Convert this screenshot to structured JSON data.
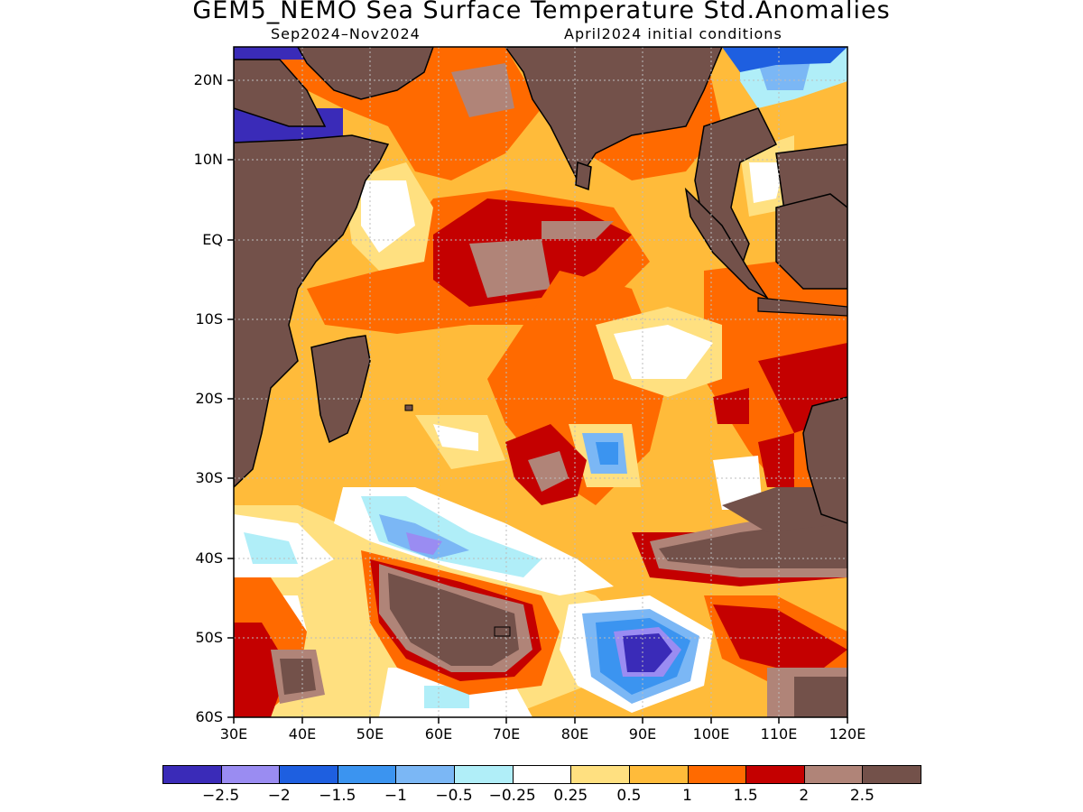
{
  "title": "GEM5_NEMO Sea Surface Temperature Std.Anomalies",
  "subtitle_left": "Sep2024–Nov2024",
  "subtitle_right": "April2024 initial conditions",
  "lat_labels": [
    "20N",
    "10N",
    "EQ",
    "10S",
    "20S",
    "30S",
    "40S",
    "50S",
    "60S"
  ],
  "lon_labels": [
    "30E",
    "40E",
    "50E",
    "60E",
    "70E",
    "80E",
    "90E",
    "100E",
    "110E",
    "120E"
  ],
  "colorbar": {
    "colors": [
      "#3a2bb8",
      "#9a8cf2",
      "#1e5fe0",
      "#3b94f0",
      "#7bb7f5",
      "#b0eef8",
      "#ffffff",
      "#ffe080",
      "#ffbb3a",
      "#ff6a00",
      "#c40000",
      "#b08478",
      "#73514a"
    ],
    "labels": [
      "−2.5",
      "−2",
      "−1.5",
      "−1",
      "−0.5",
      "−0.25",
      "0.25",
      "0.5",
      "1",
      "1.5",
      "2",
      "2.5"
    ]
  },
  "map": {
    "land_color": "#73514a",
    "lon_range": [
      30,
      120
    ],
    "lat_range": [
      -60,
      24
    ]
  }
}
